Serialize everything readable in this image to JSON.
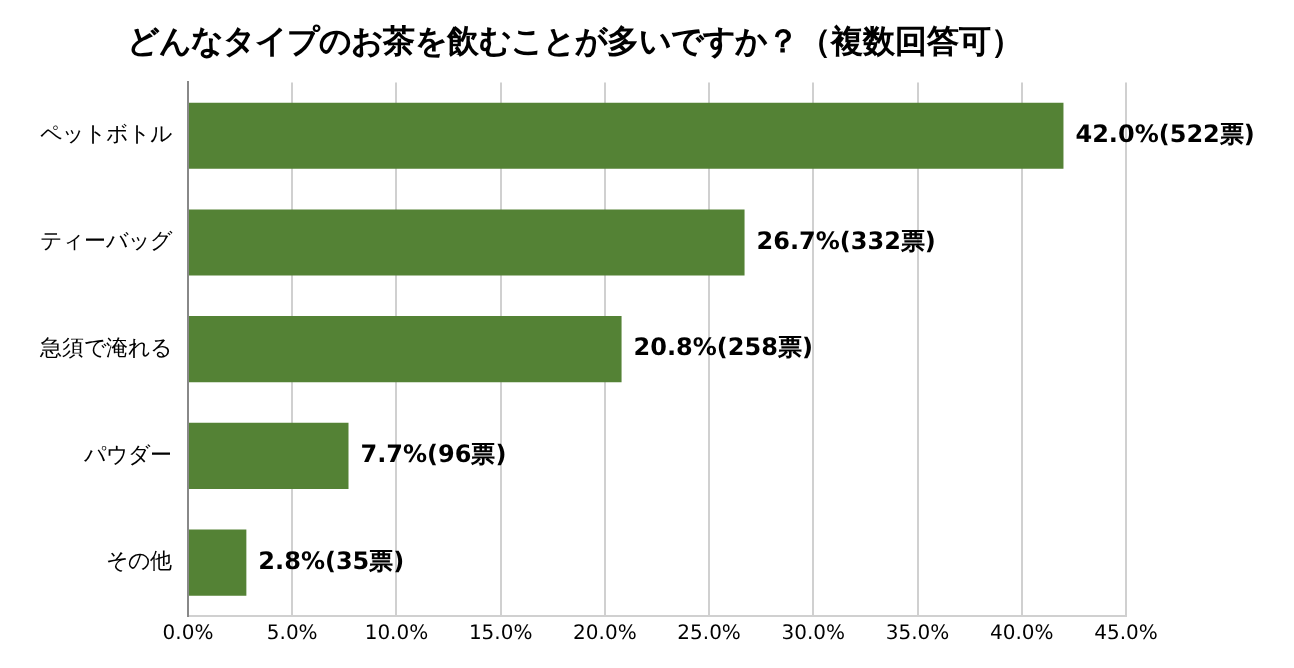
{
  "chart_data": {
    "type": "bar",
    "orientation": "horizontal",
    "title": "どんなタイプのお茶を飲むことが多いですか？（複数回答可）",
    "categories": [
      "ペットボトル",
      "ティーバッグ",
      "急須で淹れる",
      "パウダー",
      "その他"
    ],
    "values": [
      42.0,
      26.7,
      20.8,
      7.7,
      2.8
    ],
    "value_labels": [
      "42.0%(522票)",
      "26.7%(332票)",
      "20.8%(258票)",
      "7.7%(96票)",
      "2.8%(35票)"
    ],
    "color": "#548235",
    "xlim": [
      0,
      45
    ],
    "xticks": [
      {
        "value": 0,
        "label": "0.0%"
      },
      {
        "value": 5,
        "label": "5.0%"
      },
      {
        "value": 10,
        "label": "10.0%"
      },
      {
        "value": 15,
        "label": "15.0%"
      },
      {
        "value": 20,
        "label": "20.0%"
      },
      {
        "value": 25,
        "label": "25.0%"
      },
      {
        "value": 30,
        "label": "30.0%"
      },
      {
        "value": 35,
        "label": "35.0%"
      },
      {
        "value": 40,
        "label": "40.0%"
      },
      {
        "value": 45,
        "label": "45.0%"
      }
    ],
    "grid": "x",
    "legend": false
  }
}
